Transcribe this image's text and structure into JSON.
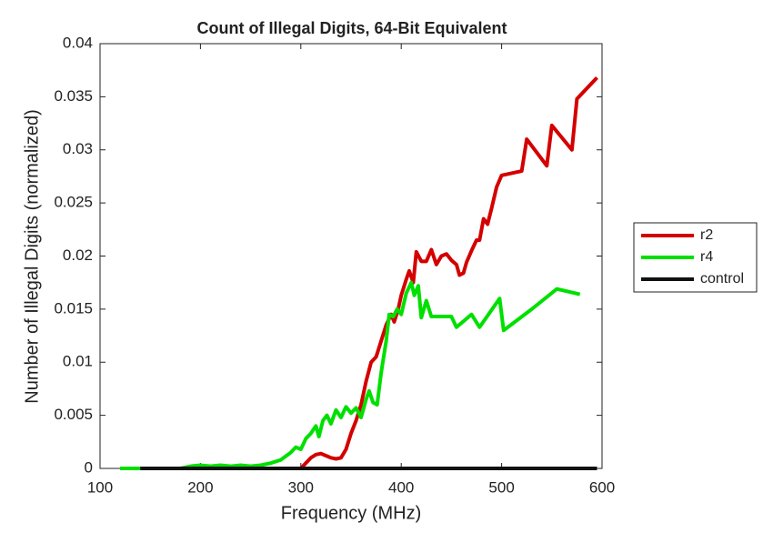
{
  "chart_data": {
    "type": "line",
    "title": "Count of Illegal Digits, 64-Bit Equivalent",
    "xlabel": "Frequency (MHz)",
    "ylabel": "Number of Illegal Digits (normalized)",
    "xlim": [
      100,
      600
    ],
    "xticks": [
      100,
      200,
      300,
      400,
      500,
      600
    ],
    "ylim": [
      0,
      0.04
    ],
    "yticks": [
      0,
      0.005,
      0.01,
      0.015,
      0.02,
      0.025,
      0.03,
      0.035,
      0.04
    ],
    "legend": "east-outside",
    "series": [
      {
        "name": "r2",
        "color": "#d40000",
        "x": [
          140,
          290,
          300,
          305,
          310,
          315,
          320,
          325,
          330,
          335,
          340,
          345,
          350,
          355,
          360,
          365,
          370,
          375,
          380,
          385,
          390,
          393,
          397,
          400,
          405,
          408,
          412,
          415,
          420,
          425,
          430,
          435,
          440,
          445,
          450,
          455,
          458,
          462,
          465,
          470,
          475,
          478,
          482,
          486,
          490,
          495,
          500,
          520,
          525,
          545,
          550,
          570,
          575,
          595
        ],
        "values": [
          0,
          0,
          0,
          0.0005,
          0.001,
          0.0013,
          0.0014,
          0.0012,
          0.001,
          0.0009,
          0.001,
          0.0018,
          0.0033,
          0.0045,
          0.006,
          0.0082,
          0.01,
          0.0105,
          0.012,
          0.0135,
          0.0145,
          0.0138,
          0.015,
          0.0163,
          0.0178,
          0.0186,
          0.0175,
          0.0204,
          0.0195,
          0.0195,
          0.0206,
          0.0192,
          0.02,
          0.0202,
          0.0196,
          0.0192,
          0.0182,
          0.0184,
          0.0194,
          0.0205,
          0.0215,
          0.0215,
          0.0235,
          0.023,
          0.0245,
          0.0265,
          0.0276,
          0.028,
          0.031,
          0.0285,
          0.0323,
          0.03,
          0.0348,
          0.0368
        ]
      },
      {
        "name": "r4",
        "color": "#00e000",
        "x": [
          120,
          180,
          190,
          200,
          210,
          220,
          230,
          240,
          250,
          260,
          270,
          280,
          290,
          295,
          300,
          305,
          310,
          315,
          318,
          322,
          326,
          330,
          335,
          340,
          345,
          350,
          355,
          360,
          365,
          368,
          372,
          376,
          380,
          385,
          388,
          392,
          396,
          400,
          405,
          410,
          413,
          417,
          420,
          425,
          430,
          450,
          455,
          470,
          478,
          498,
          502,
          530,
          555,
          578
        ],
        "values": [
          0,
          0,
          0.0002,
          0.0003,
          0.0002,
          0.0003,
          0.0002,
          0.0003,
          0.0002,
          0.0003,
          0.0005,
          0.0008,
          0.0015,
          0.002,
          0.0018,
          0.0028,
          0.0033,
          0.004,
          0.003,
          0.0045,
          0.005,
          0.0042,
          0.0055,
          0.0048,
          0.0058,
          0.0052,
          0.0057,
          0.0048,
          0.0065,
          0.0073,
          0.0062,
          0.006,
          0.009,
          0.012,
          0.0145,
          0.0143,
          0.015,
          0.0145,
          0.0165,
          0.0175,
          0.0163,
          0.0172,
          0.0142,
          0.0158,
          0.0143,
          0.0143,
          0.0133,
          0.0145,
          0.0133,
          0.016,
          0.013,
          0.015,
          0.0169,
          0.0164
        ]
      },
      {
        "name": "control",
        "color": "#111111",
        "x": [
          140,
          595
        ],
        "values": [
          0,
          0
        ]
      }
    ]
  }
}
